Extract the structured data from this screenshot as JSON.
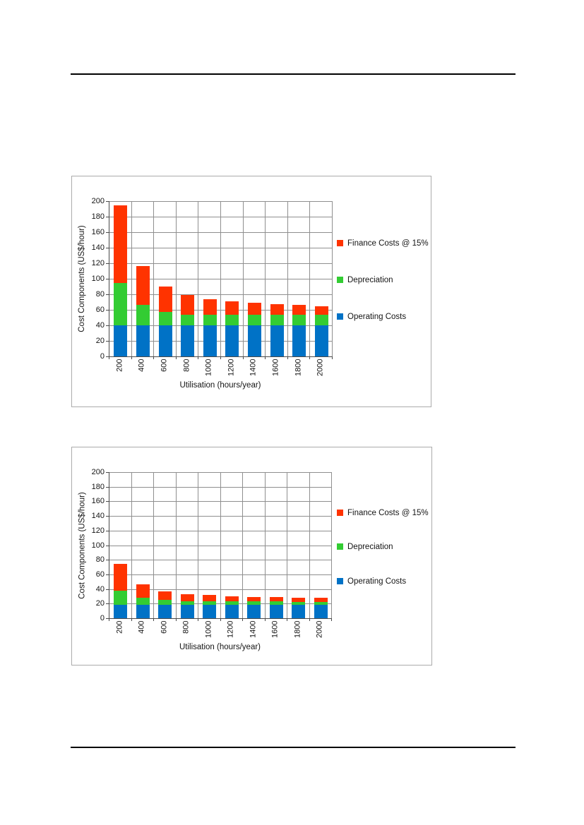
{
  "chart_data": [
    {
      "type": "bar",
      "stacked": true,
      "title": "",
      "xlabel": "Utilisation (hours/year)",
      "ylabel": "Cost Components (US$/hour)",
      "ylim": [
        0,
        200
      ],
      "ytick_step": 20,
      "grid": true,
      "legend_position": "right",
      "categories": [
        "200",
        "400",
        "600",
        "800",
        "1000",
        "1200",
        "1400",
        "1600",
        "1800",
        "2000"
      ],
      "series": [
        {
          "name": "Operating Costs",
          "color": "#0072C6",
          "values": [
            40,
            40,
            40,
            40,
            40,
            40,
            40,
            40,
            40,
            40
          ]
        },
        {
          "name": "Depreciation",
          "color": "#33CC33",
          "values": [
            55,
            26,
            17,
            14,
            14,
            14,
            14,
            14,
            14,
            14
          ]
        },
        {
          "name": "Finance Costs @ 15%",
          "color": "#FF3300",
          "values": [
            100,
            50,
            33,
            25,
            20,
            17,
            15,
            13,
            12,
            11
          ]
        }
      ],
      "totals": [
        195,
        116,
        90,
        79,
        74,
        71,
        69,
        67,
        66,
        65
      ],
      "legend": [
        {
          "label": "Finance Costs @ 15%",
          "color": "#FF3300"
        },
        {
          "label": "Depreciation",
          "color": "#33CC33"
        },
        {
          "label": "Operating Costs",
          "color": "#0072C6"
        }
      ]
    },
    {
      "type": "bar",
      "stacked": true,
      "title": "",
      "xlabel": "Utilisation (hours/year)",
      "ylabel": "Cost Components (US$/hour)",
      "ylim": [
        0,
        200
      ],
      "ytick_step": 20,
      "grid": true,
      "legend_position": "right",
      "categories": [
        "200",
        "400",
        "600",
        "800",
        "1000",
        "1200",
        "1400",
        "1600",
        "1800",
        "2000"
      ],
      "series": [
        {
          "name": "Operating Costs",
          "color": "#0072C6",
          "values": [
            18,
            18,
            18,
            18,
            18,
            18,
            18,
            18,
            18,
            18
          ]
        },
        {
          "name": "Depreciation",
          "color": "#33CC33",
          "values": [
            20,
            10,
            7,
            5,
            5,
            5,
            5,
            5,
            4,
            4
          ]
        },
        {
          "name": "Finance Costs @ 15%",
          "color": "#FF3300",
          "values": [
            36,
            18,
            12,
            10,
            9,
            7,
            6,
            6,
            6,
            6
          ]
        }
      ],
      "totals": [
        74,
        46,
        37,
        33,
        32,
        30,
        29,
        29,
        28,
        28
      ],
      "legend": [
        {
          "label": "Finance Costs @ 15%",
          "color": "#FF3300"
        },
        {
          "label": "Depreciation",
          "color": "#33CC33"
        },
        {
          "label": "Operating Costs",
          "color": "#0072C6"
        }
      ]
    }
  ]
}
